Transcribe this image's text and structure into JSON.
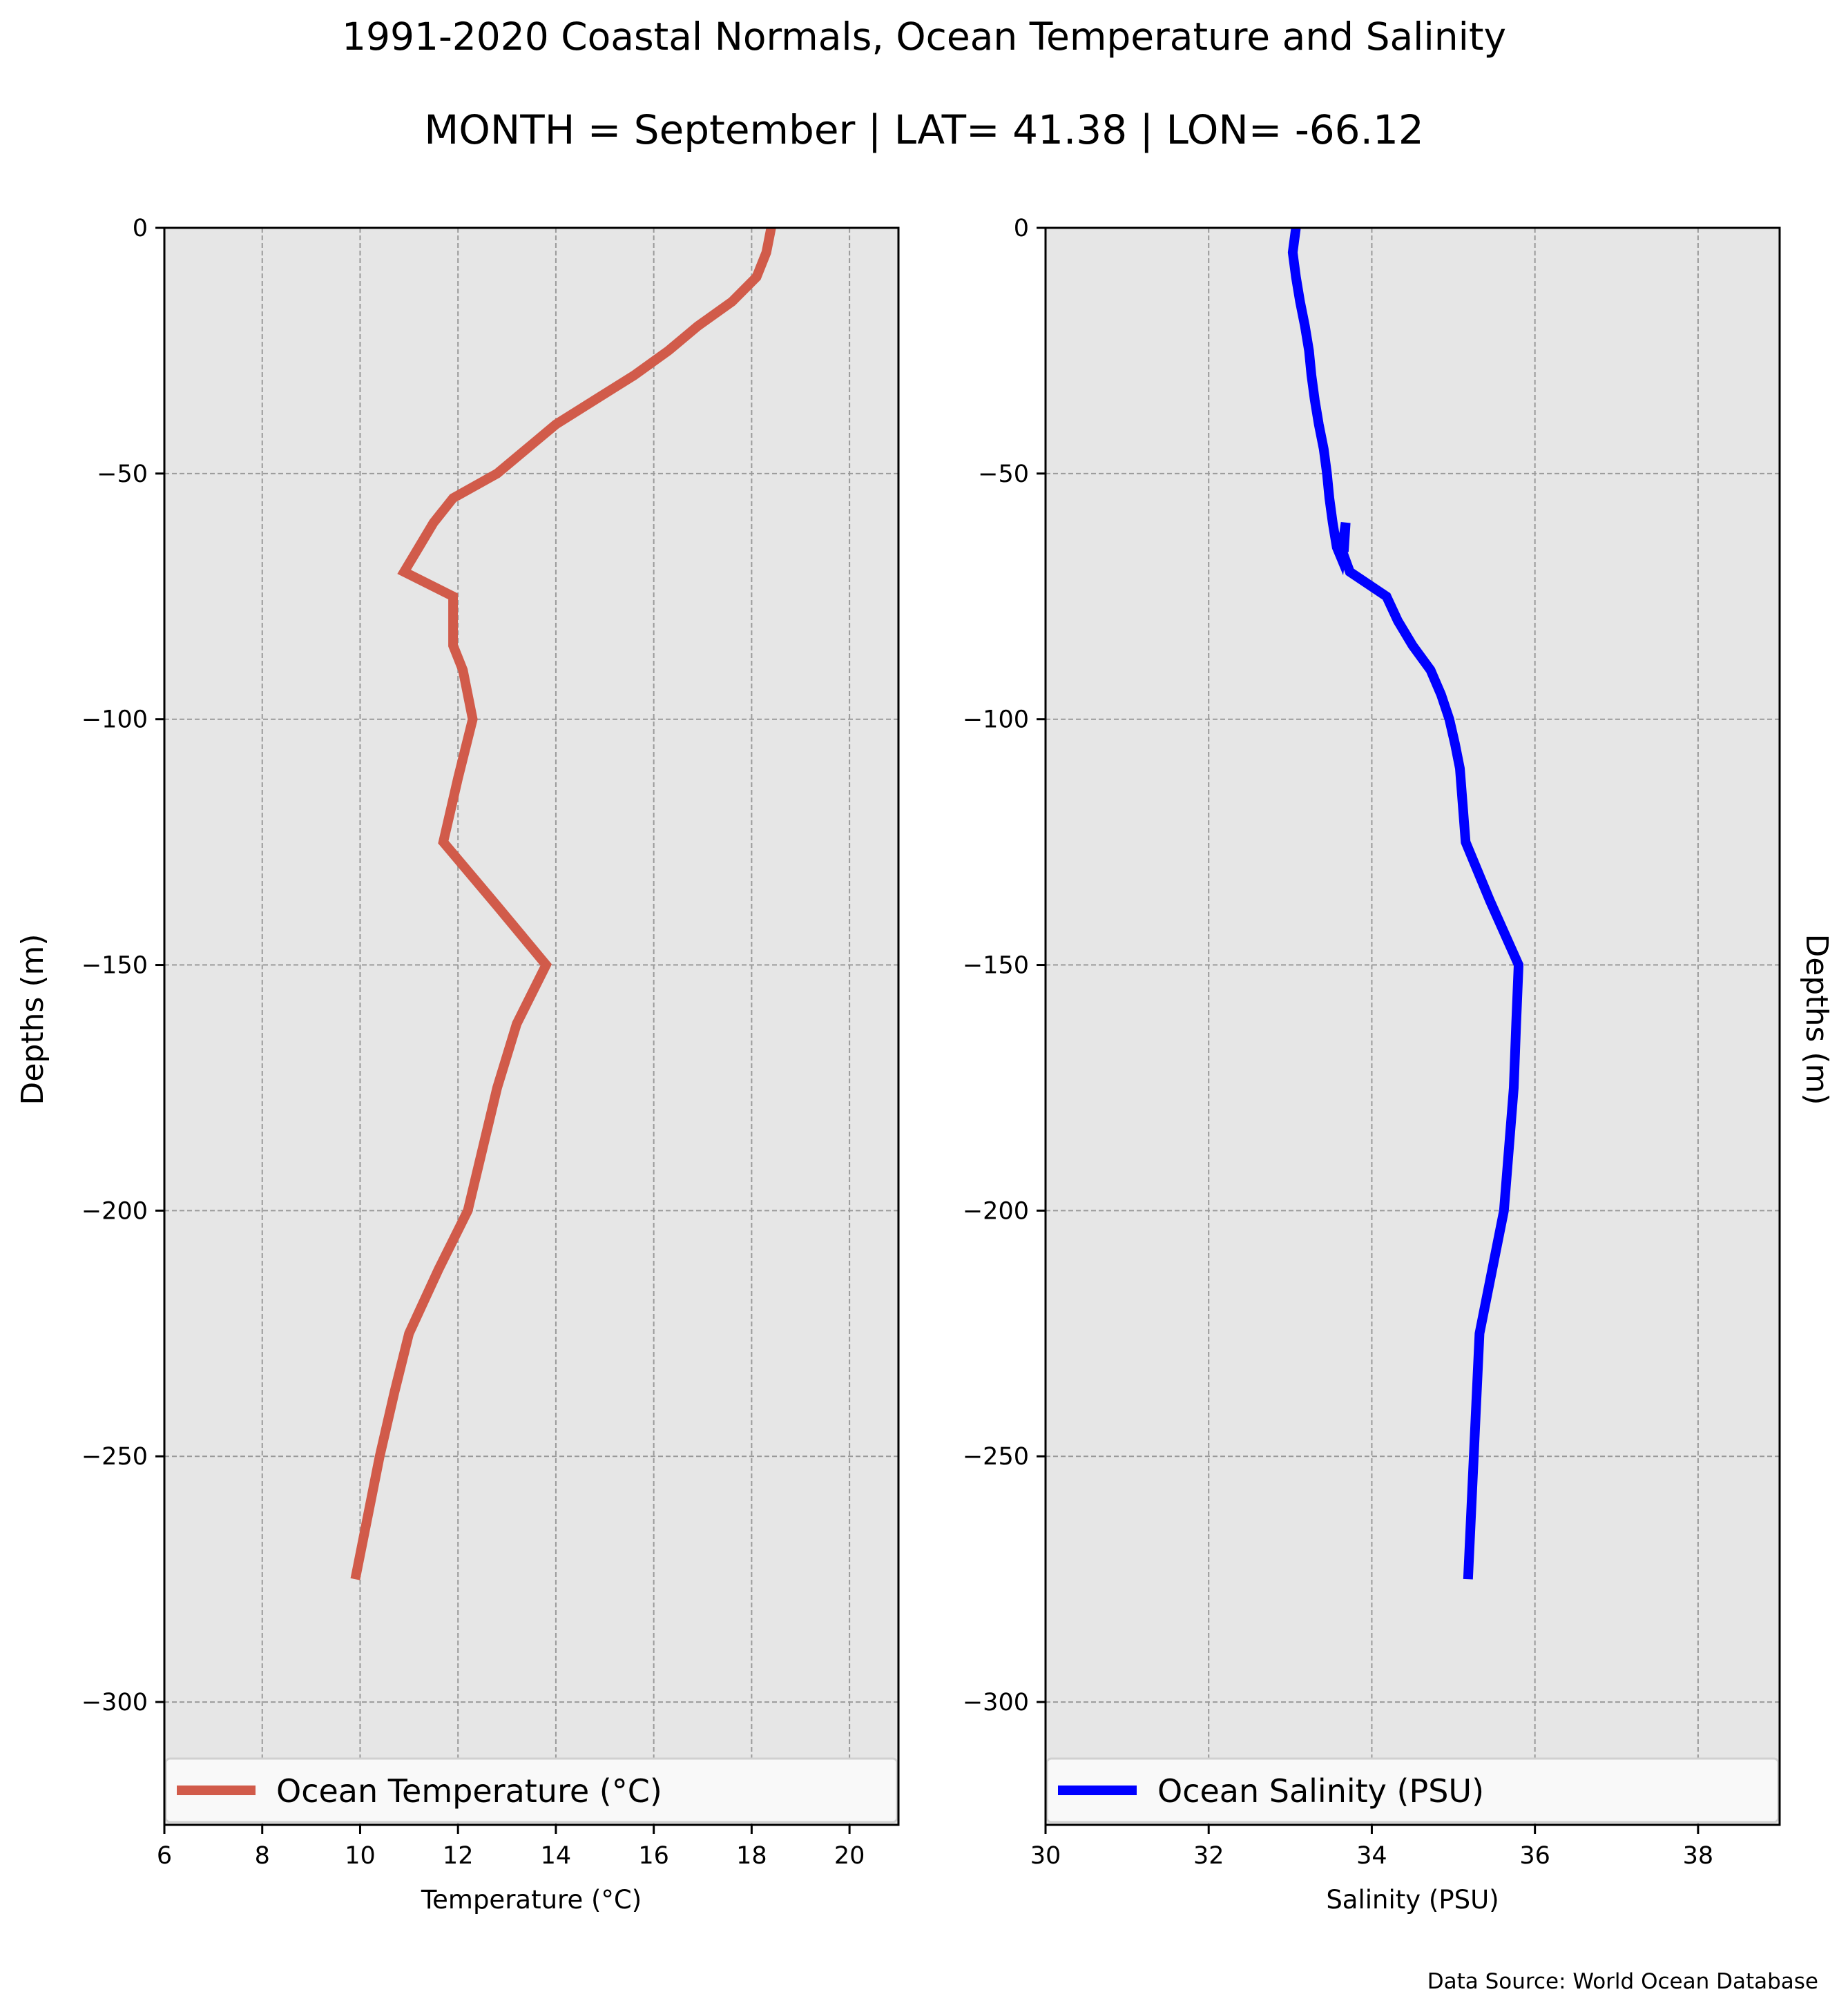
{
  "title": "1991-2020 Coastal Normals, Ocean Temperature and Salinity",
  "subtitle": "MONTH = September | LAT= 41.38 | LON= -66.12",
  "footer": "Data Source: World Ocean Database",
  "chart_data": [
    {
      "type": "line",
      "orientation": "vertical-profile",
      "xlabel": "Temperature (°C)",
      "ylabel": "Depths (m)",
      "xlim": [
        6,
        21
      ],
      "ylim": [
        -325,
        0
      ],
      "xticks": [
        6,
        8,
        10,
        12,
        14,
        16,
        18,
        20
      ],
      "xtick_labels": [
        "6",
        "8",
        "10",
        "12",
        "14",
        "16",
        "18",
        "20"
      ],
      "yticks": [
        0,
        -50,
        -100,
        -150,
        -200,
        -250,
        -300
      ],
      "ytick_labels": [
        "0",
        "−50",
        "−100",
        "−150",
        "−200",
        "−250",
        "−300"
      ],
      "grid": true,
      "legend_position": "bottom",
      "color": "#d15b4a",
      "series": [
        {
          "name": "Ocean Temperature (°C)",
          "x": [
            18.4,
            18.3,
            18.1,
            17.6,
            16.9,
            16.3,
            15.6,
            14.8,
            14.0,
            13.4,
            12.8,
            11.9,
            11.5,
            11.2,
            10.9,
            11.9,
            11.9,
            11.9,
            12.1,
            12.2,
            12.3,
            12.0,
            11.7,
            12.8,
            13.8,
            13.2,
            12.8,
            12.2,
            11.6,
            11.0,
            10.7,
            10.4,
            9.9
          ],
          "y": [
            0,
            -5,
            -10,
            -15,
            -20,
            -25,
            -30,
            -35,
            -40,
            -45,
            -50,
            -55,
            -60,
            -65,
            -70,
            -75,
            -80,
            -85,
            -90,
            -95,
            -100,
            -112,
            -125,
            -138,
            -150,
            -162,
            -175,
            -200,
            -212,
            -225,
            -237,
            -250,
            -275
          ]
        }
      ]
    },
    {
      "type": "line",
      "orientation": "vertical-profile",
      "xlabel": "Salinity (PSU)",
      "ylabel": "Depths (m)",
      "xlim": [
        30,
        39
      ],
      "ylim": [
        -325,
        0
      ],
      "xticks": [
        30,
        32,
        34,
        36,
        38
      ],
      "xtick_labels": [
        "30",
        "32",
        "34",
        "36",
        "38"
      ],
      "yticks": [
        0,
        -50,
        -100,
        -150,
        -200,
        -250,
        -300
      ],
      "ytick_labels": [
        "0",
        "−50",
        "−100",
        "−150",
        "−200",
        "−250",
        "−300"
      ],
      "grid": true,
      "legend_position": "bottom",
      "color": "#0000ff",
      "series": [
        {
          "name": "Ocean Salinity (PSU)",
          "x": [
            33.07,
            33.03,
            33.07,
            33.12,
            33.18,
            33.23,
            33.26,
            33.3,
            33.35,
            33.41,
            33.45,
            33.48,
            33.52,
            33.57,
            33.62,
            33.68,
            33.66,
            33.62,
            33.73,
            34.18,
            34.32,
            34.5,
            34.72,
            34.85,
            34.95,
            35.02,
            35.08,
            35.15,
            35.45,
            35.8,
            35.77,
            35.74,
            35.62,
            35.32,
            35.25,
            35.18
          ],
          "y": [
            0,
            -5,
            -10,
            -15,
            -20,
            -25,
            -30,
            -35,
            -40,
            -45,
            -50,
            -55,
            -60,
            -65,
            -67,
            -60,
            -65,
            -65,
            -70,
            -75,
            -80,
            -85,
            -90,
            -95,
            -100,
            -105,
            -110,
            -125,
            -137,
            -150,
            -162,
            -175,
            -200,
            -225,
            -250,
            -275
          ]
        }
      ]
    }
  ]
}
